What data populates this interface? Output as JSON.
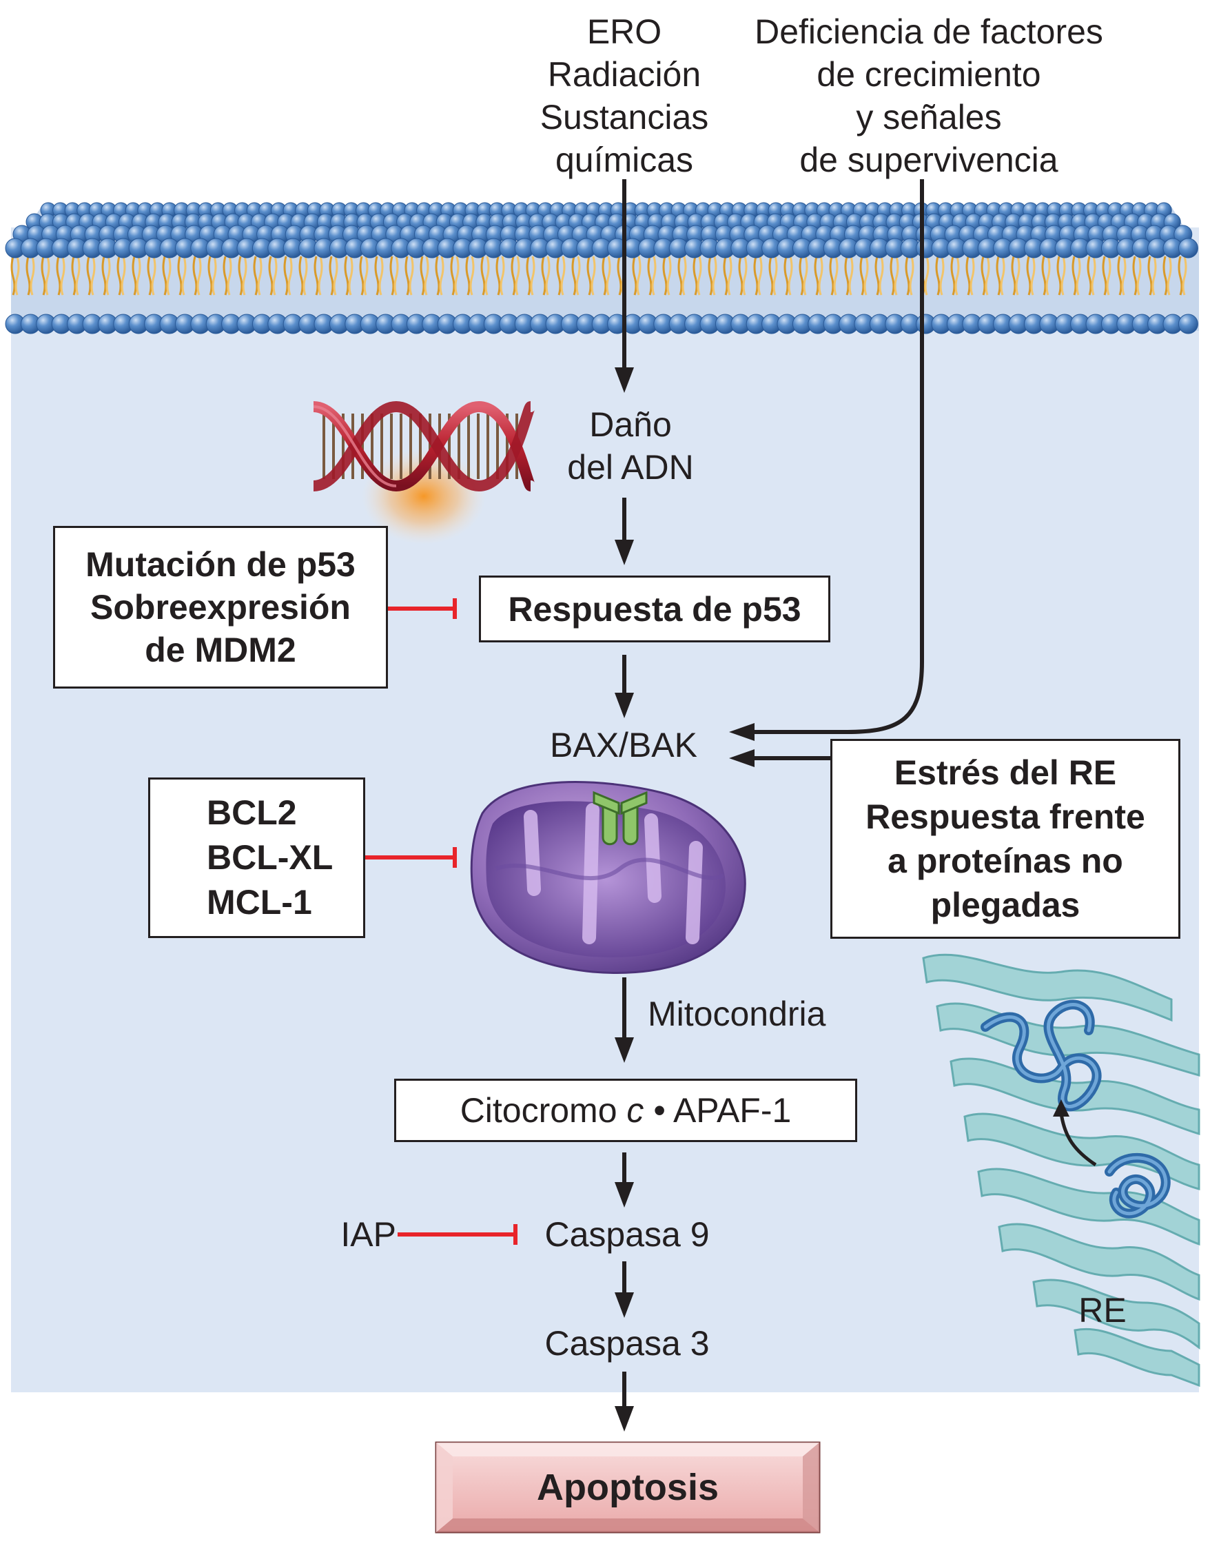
{
  "stimuli": {
    "ero_radiation": "ERO\nRadiación\nSustancias\nquímicas",
    "growth_factor_deficiency": "Deficiencia de factores\nde crecimiento\ny señales\nde supervivencia"
  },
  "nodes": {
    "dna_damage": "Daño\ndel ADN",
    "p53_response": "Respuesta de p53",
    "bax_bak": "BAX/BAK",
    "mitochondria": "Mitocondria",
    "cytochrome_apaf_pre": "Citocromo ",
    "cytochrome_c": "c",
    "cytochrome_apaf_post": " • APAF-1",
    "caspase9": "Caspasa 9",
    "caspase3": "Caspasa 3",
    "apoptosis": "Apoptosis",
    "er": "RE"
  },
  "inhibitors": {
    "p53_inhibitor": "Mutación de p53\nSobreexpresión\nde MDM2",
    "bcl_family": "BCL2\nBCL-XL\nMCL-1",
    "er_stress": "Estrés del RE\nRespuesta frente\na proteínas no\nplegadas",
    "iap": "IAP"
  },
  "colors": {
    "background": "#dce6f4",
    "membrane_head": "#4a7fc0",
    "membrane_tail": "#e0a940",
    "inhibit_line": "#e8242a",
    "up_arrow": "#12a04a",
    "dna_strand": "#c0303a",
    "mitochondrion": "#8f6bb8",
    "er": "#9fd3d5",
    "unfolded_protein": "#3a78b8",
    "apoptosis_fill": "#f2c4c4"
  }
}
